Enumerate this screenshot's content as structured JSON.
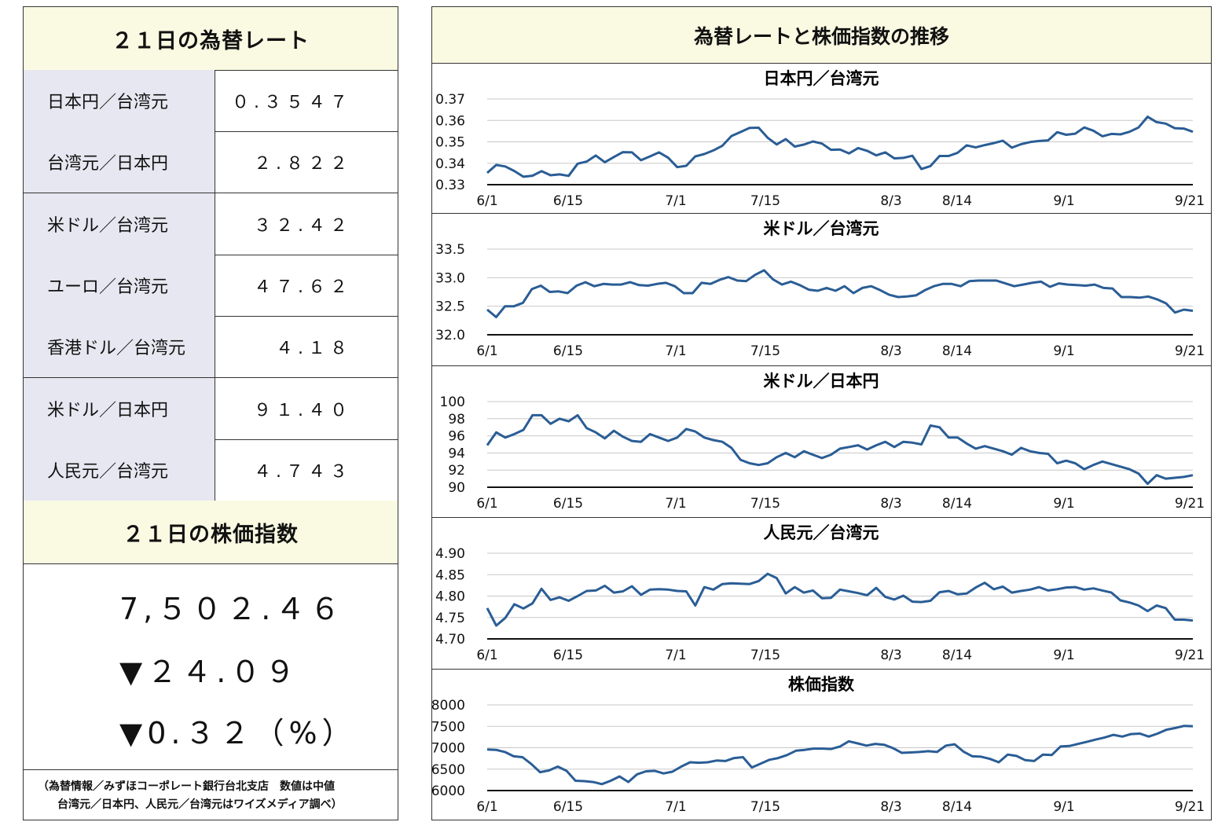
{
  "rates": {
    "title": "２１日の為替レート",
    "rows": [
      {
        "name": "日本円／台湾元",
        "value": "０.３５４７"
      },
      {
        "name": "台湾元／日本円",
        "value": "２.８２２"
      },
      {
        "name": "米ドル／台湾元",
        "value": "３２.４２"
      },
      {
        "name": "ユーロ／台湾元",
        "value": "４７.６２"
      },
      {
        "name": "香港ドル／台湾元",
        "value": "４.１８"
      },
      {
        "name": "米ドル／日本円",
        "value": "９１.４０"
      },
      {
        "name": "人民元／台湾元",
        "value": "４.７４３"
      }
    ]
  },
  "stock": {
    "title": "２１日の株価指数",
    "value": "7,５０２.４６",
    "change": "▼２４.０９",
    "percent": "▼0.３２（%）"
  },
  "note": {
    "line1": "（為替情報／みずほコーポレート銀行台北支店　数値は中値",
    "line2": "台湾元／日本円、人民元／台湾元はワイズメディア調べ）"
  },
  "charts_header": "為替レートと株価指数の推移",
  "chart_data": [
    {
      "type": "line",
      "title": "日本円／台湾元",
      "x_ticks": [
        "6/1",
        "6/15",
        "7/1",
        "7/15",
        "8/3",
        "8/14",
        "9/1",
        "9/21"
      ],
      "y_ticks": [
        "0.33",
        "0.34",
        "0.35",
        "0.36",
        "0.37"
      ],
      "ylim": [
        0.33,
        0.37
      ],
      "color": "#2a5d95",
      "series": [
        {
          "values": [
            0.3355,
            0.3392,
            0.3385,
            0.3364,
            0.3337,
            0.3342,
            0.3363,
            0.3344,
            0.3348,
            0.3341,
            0.3398,
            0.3408,
            0.3436,
            0.3405,
            0.3429,
            0.3452,
            0.3451,
            0.3414,
            0.3432,
            0.3451,
            0.3426,
            0.3382,
            0.3388,
            0.3432,
            0.3443,
            0.346,
            0.3482,
            0.3527,
            0.3546,
            0.3565,
            0.3566,
            0.3519,
            0.3488,
            0.3513,
            0.3478,
            0.3487,
            0.3502,
            0.3492,
            0.3463,
            0.3464,
            0.3446,
            0.3471,
            0.3458,
            0.3437,
            0.3451,
            0.3423,
            0.3425,
            0.3435,
            0.3373,
            0.3387,
            0.3434,
            0.3434,
            0.3449,
            0.3484,
            0.3474,
            0.3485,
            0.3494,
            0.3505,
            0.3473,
            0.3489,
            0.3499,
            0.3504,
            0.3507,
            0.3545,
            0.3533,
            0.3538,
            0.3567,
            0.3552,
            0.3526,
            0.3537,
            0.3535,
            0.3547,
            0.3567,
            0.3617,
            0.3592,
            0.3585,
            0.3564,
            0.3562,
            0.3547
          ]
        }
      ]
    },
    {
      "type": "line",
      "title": "米ドル／台湾元",
      "x_ticks": [
        "6/1",
        "6/15",
        "7/1",
        "7/15",
        "8/3",
        "8/14",
        "9/1",
        "9/21"
      ],
      "y_ticks": [
        "32.0",
        "32.5",
        "33.0",
        "33.5"
      ],
      "ylim": [
        32.0,
        33.5
      ],
      "color": "#2a5d95",
      "series": [
        {
          "values": [
            32.44,
            32.31,
            32.5,
            32.5,
            32.56,
            32.8,
            32.86,
            32.75,
            32.76,
            32.73,
            32.86,
            32.92,
            32.85,
            32.89,
            32.88,
            32.88,
            32.92,
            32.87,
            32.86,
            32.89,
            32.91,
            32.85,
            32.73,
            32.73,
            32.91,
            32.89,
            32.96,
            33.01,
            32.95,
            32.94,
            33.05,
            33.13,
            32.97,
            32.88,
            32.93,
            32.87,
            32.79,
            32.77,
            32.82,
            32.77,
            32.85,
            32.73,
            32.82,
            32.85,
            32.78,
            32.7,
            32.66,
            32.67,
            32.69,
            32.78,
            32.85,
            32.89,
            32.89,
            32.85,
            32.94,
            32.95,
            32.95,
            32.95,
            32.9,
            32.85,
            32.88,
            32.91,
            32.93,
            32.84,
            32.9,
            32.88,
            32.87,
            32.86,
            32.88,
            32.82,
            32.81,
            32.66,
            32.66,
            32.65,
            32.67,
            32.62,
            32.55,
            32.39,
            32.44,
            32.42
          ]
        }
      ]
    },
    {
      "type": "line",
      "title": "米ドル／日本円",
      "x_ticks": [
        "6/1",
        "6/15",
        "7/1",
        "7/15",
        "8/3",
        "8/14",
        "9/1",
        "9/21"
      ],
      "y_ticks": [
        "90",
        "92",
        "94",
        "96",
        "98",
        "100"
      ],
      "ylim": [
        90,
        100
      ],
      "color": "#2a5d95",
      "series": [
        {
          "values": [
            94.9,
            96.4,
            95.8,
            96.2,
            96.7,
            98.4,
            98.4,
            97.4,
            98.0,
            97.7,
            98.4,
            96.9,
            96.4,
            95.7,
            96.6,
            95.9,
            95.4,
            95.3,
            96.2,
            95.8,
            95.4,
            95.8,
            96.8,
            96.5,
            95.8,
            95.5,
            95.3,
            94.6,
            93.2,
            92.8,
            92.6,
            92.8,
            93.5,
            94.0,
            93.5,
            94.2,
            93.8,
            93.4,
            93.8,
            94.5,
            94.7,
            94.9,
            94.4,
            94.9,
            95.3,
            94.7,
            95.3,
            95.2,
            95.0,
            97.2,
            97.0,
            95.8,
            95.8,
            95.1,
            94.5,
            94.8,
            94.5,
            94.2,
            93.8,
            94.6,
            94.2,
            94.0,
            93.9,
            92.8,
            93.1,
            92.8,
            92.1,
            92.6,
            93.0,
            92.7,
            92.4,
            92.1,
            91.6,
            90.4,
            91.4,
            91.0,
            91.1,
            91.2,
            91.4
          ]
        }
      ]
    },
    {
      "type": "line",
      "title": "人民元／台湾元",
      "x_ticks": [
        "6/1",
        "6/15",
        "7/1",
        "7/15",
        "8/3",
        "8/14",
        "9/1",
        "9/21"
      ],
      "y_ticks": [
        "4.70",
        "4.75",
        "4.80",
        "4.85",
        "4.90"
      ],
      "ylim": [
        4.7,
        4.9
      ],
      "color": "#2a5d95",
      "series": [
        {
          "values": [
            4.772,
            4.731,
            4.749,
            4.781,
            4.771,
            4.783,
            4.817,
            4.791,
            4.797,
            4.789,
            4.8,
            4.812,
            4.813,
            4.824,
            4.808,
            4.811,
            4.823,
            4.803,
            4.815,
            4.816,
            4.815,
            4.812,
            4.811,
            4.778,
            4.821,
            4.815,
            4.828,
            4.83,
            4.829,
            4.828,
            4.835,
            4.852,
            4.842,
            4.806,
            4.821,
            4.808,
            4.813,
            4.795,
            4.796,
            4.815,
            4.811,
            4.807,
            4.802,
            4.819,
            4.798,
            4.792,
            4.801,
            4.787,
            4.786,
            4.789,
            4.809,
            4.812,
            4.804,
            4.806,
            4.82,
            4.831,
            4.816,
            4.822,
            4.808,
            4.812,
            4.815,
            4.821,
            4.813,
            4.816,
            4.82,
            4.821,
            4.815,
            4.818,
            4.813,
            4.808,
            4.79,
            4.785,
            4.778,
            4.765,
            4.778,
            4.772,
            4.745,
            4.745,
            4.743
          ]
        }
      ]
    },
    {
      "type": "line",
      "title": "株価指数",
      "x_ticks": [
        "6/1",
        "6/15",
        "7/1",
        "7/15",
        "8/3",
        "8/14",
        "9/1",
        "9/21"
      ],
      "y_ticks": [
        "6000",
        "6500",
        "7000",
        "7500",
        "8000"
      ],
      "ylim": [
        6000,
        8000
      ],
      "color": "#2a5d95",
      "series": [
        {
          "values": [
            6960,
            6950,
            6900,
            6800,
            6780,
            6620,
            6430,
            6470,
            6560,
            6460,
            6230,
            6220,
            6200,
            6150,
            6230,
            6330,
            6200,
            6380,
            6450,
            6460,
            6400,
            6440,
            6560,
            6660,
            6650,
            6660,
            6700,
            6690,
            6760,
            6780,
            6540,
            6630,
            6720,
            6760,
            6830,
            6930,
            6950,
            6980,
            6980,
            6970,
            7030,
            7150,
            7100,
            7050,
            7090,
            7070,
            6990,
            6880,
            6890,
            6900,
            6920,
            6900,
            7050,
            7080,
            6910,
            6800,
            6790,
            6740,
            6660,
            6840,
            6810,
            6710,
            6690,
            6840,
            6830,
            7030,
            7040,
            7090,
            7140,
            7190,
            7240,
            7300,
            7260,
            7320,
            7330,
            7260,
            7330,
            7420,
            7460,
            7510,
            7502
          ]
        }
      ]
    }
  ]
}
